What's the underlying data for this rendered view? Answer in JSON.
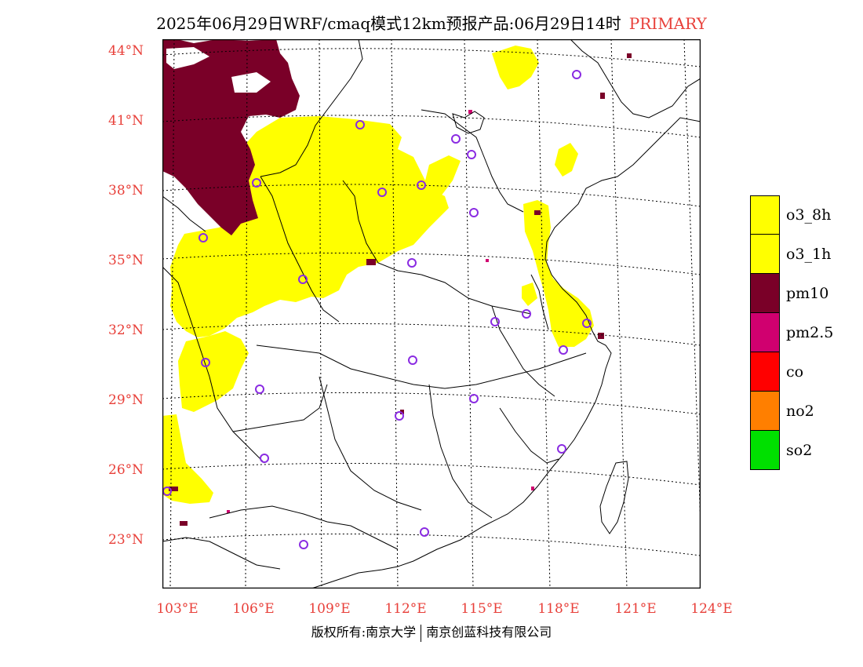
{
  "title": {
    "main": "2025年06月29日WRF/cmaq模式12km预报产品:06月29日14时",
    "tag": "PRIMARY"
  },
  "lat_labels": [
    "44°N",
    "41°N",
    "38°N",
    "35°N",
    "32°N",
    "29°N",
    "26°N",
    "23°N"
  ],
  "lon_labels": [
    "103°E",
    "106°E",
    "109°E",
    "112°E",
    "115°E",
    "118°E",
    "121°E",
    "124°E"
  ],
  "legend": [
    {
      "label": "o3_8h",
      "color": "#ffff00"
    },
    {
      "label": "o3_1h",
      "color": "#ffff00"
    },
    {
      "label": "pm10",
      "color": "#7a0028"
    },
    {
      "label": "pm2.5",
      "color": "#d0006f"
    },
    {
      "label": "co",
      "color": "#ff0000"
    },
    {
      "label": "no2",
      "color": "#ff7f00"
    },
    {
      "label": "so2",
      "color": "#00e000"
    }
  ],
  "footer": {
    "left": "版权所有:南京大学",
    "right": "南京创蓝科技有限公司"
  },
  "colors": {
    "accent": "#e8403a",
    "station": "#8a2be2"
  }
}
